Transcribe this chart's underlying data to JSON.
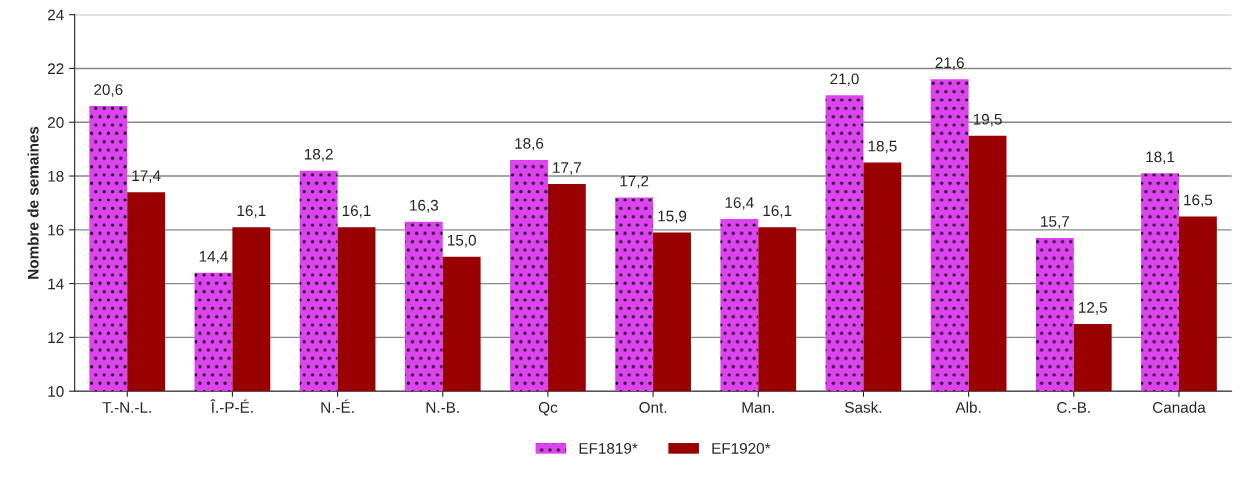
{
  "chart_data": {
    "type": "bar",
    "ylabel": "Nombre de semaines",
    "categories": [
      "T.-N.-L.",
      "Î.-P-É.",
      "N.-É.",
      "N.-B.",
      "Qc",
      "Ont.",
      "Man.",
      "Sask.",
      "Alb.",
      "C.-B.",
      "Canada"
    ],
    "series": [
      {
        "name": "EF1819*",
        "color": "#dd44f0",
        "values": [
          20.6,
          14.4,
          18.2,
          16.3,
          18.6,
          17.2,
          16.4,
          21.0,
          21.6,
          15.7,
          18.1
        ],
        "value_labels": [
          "20,6",
          "14,4",
          "18,2",
          "16,3",
          "18,6",
          "17,2",
          "16,4",
          "21,0",
          "21,6",
          "15,7",
          "18,1"
        ]
      },
      {
        "name": "EF1920*",
        "color": "#990000",
        "values": [
          17.4,
          16.1,
          16.1,
          15.0,
          17.7,
          15.9,
          16.1,
          18.5,
          19.5,
          12.5,
          16.5
        ],
        "value_labels": [
          "17,4",
          "16,1",
          "16,1",
          "15,0",
          "17,7",
          "15,9",
          "16,1",
          "18,5",
          "19,5",
          "12,5",
          "16,5"
        ]
      }
    ],
    "ylim": [
      10,
      24
    ],
    "yticks": [
      10,
      12,
      14,
      16,
      18,
      20,
      22,
      24
    ],
    "grid": "y",
    "legend": "bottom"
  }
}
